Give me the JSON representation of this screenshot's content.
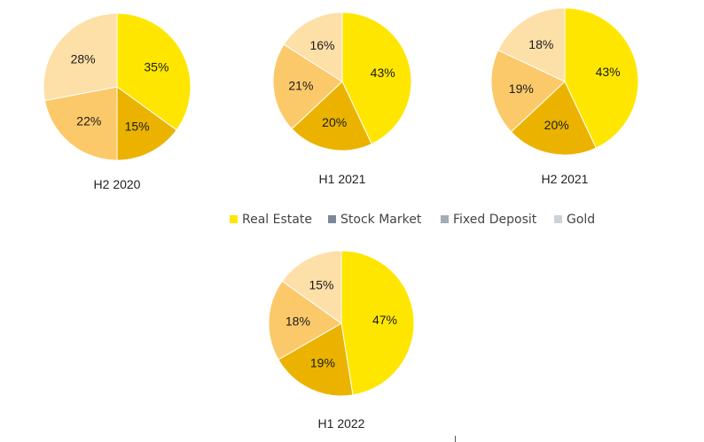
{
  "chart_data": {
    "type": "pie",
    "legend": {
      "position": "center",
      "entries": [
        {
          "label": "Real Estate",
          "color": "#FFE600"
        },
        {
          "label": "Stock Market",
          "color": "#7A8899"
        },
        {
          "label": "Fixed Deposit",
          "color": "#A3ADB8"
        },
        {
          "label": "Gold",
          "color": "#CDD2D8"
        }
      ]
    },
    "pies": [
      {
        "title": "H2 2020",
        "labels": [
          "Real Estate",
          "Stock Market",
          "Fixed Deposit",
          "Gold"
        ],
        "values": [
          35,
          15,
          22,
          28
        ],
        "display": [
          "35%",
          "15%",
          "22%",
          "28%"
        ]
      },
      {
        "title": "H1 2021",
        "labels": [
          "Real Estate",
          "Stock Market",
          "Fixed Deposit",
          "Gold"
        ],
        "values": [
          43,
          20,
          21,
          16
        ],
        "display": [
          "43%",
          "20%",
          "21%",
          "16%"
        ]
      },
      {
        "title": "H2 2021",
        "labels": [
          "Real Estate",
          "Stock Market",
          "Fixed Deposit",
          "Gold"
        ],
        "values": [
          43,
          20,
          19,
          18
        ],
        "display": [
          "43%",
          "20%",
          "19%",
          "18%"
        ]
      },
      {
        "title": "H1 2022",
        "labels": [
          "Real Estate",
          "Stock Market",
          "Fixed Deposit",
          "Gold"
        ],
        "values": [
          47,
          19,
          18,
          15
        ],
        "display": [
          "47%",
          "19%",
          "18%",
          "15%"
        ]
      }
    ],
    "slice_colors": [
      "#FFE600",
      "#EBB300",
      "#FBC96A",
      "#FDDFA8"
    ]
  }
}
